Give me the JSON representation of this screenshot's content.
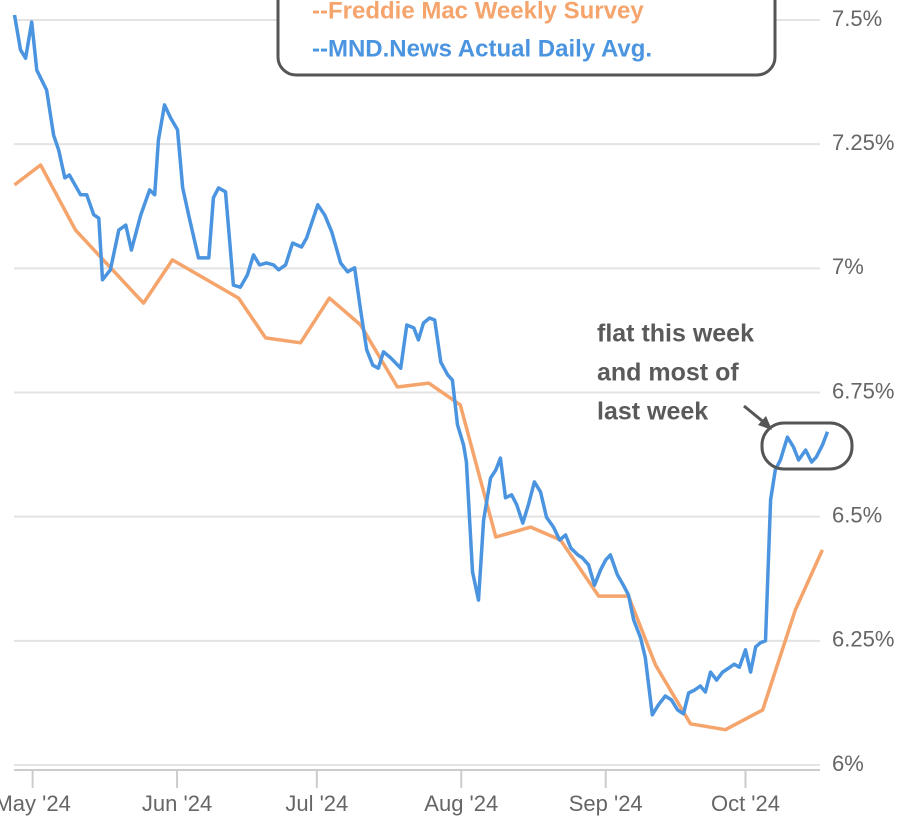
{
  "chart_data": {
    "type": "line",
    "annotation": [
      "flat this week",
      "and most of",
      "last week"
    ],
    "legend": "top",
    "grid": true,
    "xlim": [
      -4,
      172
    ],
    "ylim": [
      6,
      7.5
    ],
    "xticks": [
      {
        "value": 0,
        "label": "May '24"
      },
      {
        "value": 31,
        "label": "Jun '24"
      },
      {
        "value": 61,
        "label": "Jul '24"
      },
      {
        "value": 92,
        "label": "Aug '24"
      },
      {
        "value": 123,
        "label": "Sep '24"
      },
      {
        "value": 153,
        "label": "Oct '24"
      }
    ],
    "yticks": [
      {
        "value": 6,
        "label": "6%"
      },
      {
        "value": 6.25,
        "label": "6.25%"
      },
      {
        "value": 6.5,
        "label": "6.5%"
      },
      {
        "value": 6.75,
        "label": "6.75%"
      },
      {
        "value": 7,
        "label": "7%"
      },
      {
        "value": 7.25,
        "label": "7.25%"
      },
      {
        "value": 7.5,
        "label": "7.5%"
      }
    ],
    "series": [
      {
        "name": "--Freddie Mac Weekly Survey",
        "color": "#f5a46c",
        "x": [
          -3.9,
          1.7,
          9.2,
          23.8,
          30.0,
          44.2,
          50.0,
          57.5,
          63.7,
          70.4,
          78.3,
          85.0,
          91.8,
          99.4,
          106.9,
          113.3,
          121.5,
          127.9,
          133.7,
          141.2,
          148.7,
          156.7,
          163.7,
          169.5
        ],
        "values": [
          7.168,
          7.208,
          7.077,
          6.93,
          7.017,
          6.94,
          6.86,
          6.85,
          6.94,
          6.886,
          6.761,
          6.769,
          6.725,
          6.459,
          6.479,
          6.453,
          6.34,
          6.34,
          6.201,
          6.083,
          6.071,
          6.111,
          6.312,
          6.433
        ]
      },
      {
        "name": "--MND.News Actual Daily Avg.",
        "color": "#4a94e0",
        "x": [
          -3.9,
          -2.6,
          -1.5,
          -0.2,
          0.9,
          3.0,
          4.5,
          5.6,
          6.9,
          7.9,
          10.3,
          11.6,
          13.1,
          14.2,
          15.0,
          16.7,
          18.5,
          20.0,
          21.2,
          23.2,
          25.1,
          26.2,
          27.0,
          28.3,
          29.6,
          31.1,
          32.2,
          33.5,
          35.6,
          37.8,
          38.8,
          39.9,
          41.4,
          43.1,
          44.6,
          46.1,
          47.4,
          48.7,
          50.2,
          51.7,
          52.8,
          54.3,
          55.8,
          57.7,
          58.8,
          60.1,
          61.2,
          62.7,
          64.2,
          66.1,
          67.6,
          69.1,
          70.4,
          71.7,
          73.0,
          74.2,
          75.3,
          76.8,
          79.0,
          80.3,
          81.8,
          82.8,
          83.9,
          85.2,
          86.3,
          87.6,
          89.1,
          90.1,
          91.2,
          92.5,
          93.1,
          94.4,
          95.7,
          96.8,
          98.3,
          99.4,
          100.4,
          101.5,
          102.8,
          103.9,
          105.2,
          106.4,
          107.7,
          109.0,
          110.3,
          111.8,
          113.1,
          114.4,
          115.5,
          117.0,
          118.0,
          119.3,
          120.6,
          121.9,
          123.0,
          124.0,
          125.5,
          126.8,
          127.9,
          129.0,
          130.5,
          131.5,
          133.0,
          134.3,
          135.8,
          137.1,
          138.4,
          139.7,
          140.8,
          142.1,
          143.3,
          144.4,
          145.5,
          146.8,
          148.1,
          149.4,
          150.6,
          151.7,
          153.0,
          154.1,
          155.2,
          156.2,
          157.3,
          158.4,
          159.4,
          160.5,
          162.0,
          163.3,
          164.4,
          165.9,
          167.2,
          168.2,
          169.5,
          170.6
        ],
        "values": [
          7.51,
          7.44,
          7.423,
          7.496,
          7.399,
          7.359,
          7.268,
          7.238,
          7.182,
          7.188,
          7.148,
          7.148,
          7.108,
          7.101,
          6.977,
          6.997,
          7.077,
          7.087,
          7.037,
          7.107,
          7.158,
          7.148,
          7.258,
          7.329,
          7.303,
          7.279,
          7.162,
          7.107,
          7.021,
          7.021,
          7.142,
          7.162,
          7.154,
          6.966,
          6.962,
          6.987,
          7.027,
          7.007,
          7.011,
          7.007,
          6.997,
          7.007,
          7.051,
          7.043,
          7.061,
          7.097,
          7.128,
          7.107,
          7.073,
          7.011,
          6.993,
          7.001,
          6.916,
          6.836,
          6.805,
          6.799,
          6.832,
          6.82,
          6.799,
          6.886,
          6.88,
          6.856,
          6.89,
          6.9,
          6.896,
          6.811,
          6.785,
          6.775,
          6.685,
          6.644,
          6.61,
          6.389,
          6.332,
          6.493,
          6.578,
          6.594,
          6.618,
          6.538,
          6.544,
          6.524,
          6.487,
          6.524,
          6.57,
          6.55,
          6.499,
          6.479,
          6.453,
          6.463,
          6.437,
          6.423,
          6.417,
          6.403,
          6.362,
          6.393,
          6.413,
          6.423,
          6.383,
          6.362,
          6.342,
          6.292,
          6.256,
          6.216,
          6.101,
          6.121,
          6.139,
          6.131,
          6.111,
          6.103,
          6.145,
          6.151,
          6.159,
          6.147,
          6.187,
          6.171,
          6.187,
          6.195,
          6.203,
          6.197,
          6.232,
          6.187,
          6.238,
          6.246,
          6.25,
          6.534,
          6.594,
          6.614,
          6.66,
          6.64,
          6.614,
          6.634,
          6.61,
          6.62,
          6.644,
          6.671
        ]
      }
    ]
  }
}
